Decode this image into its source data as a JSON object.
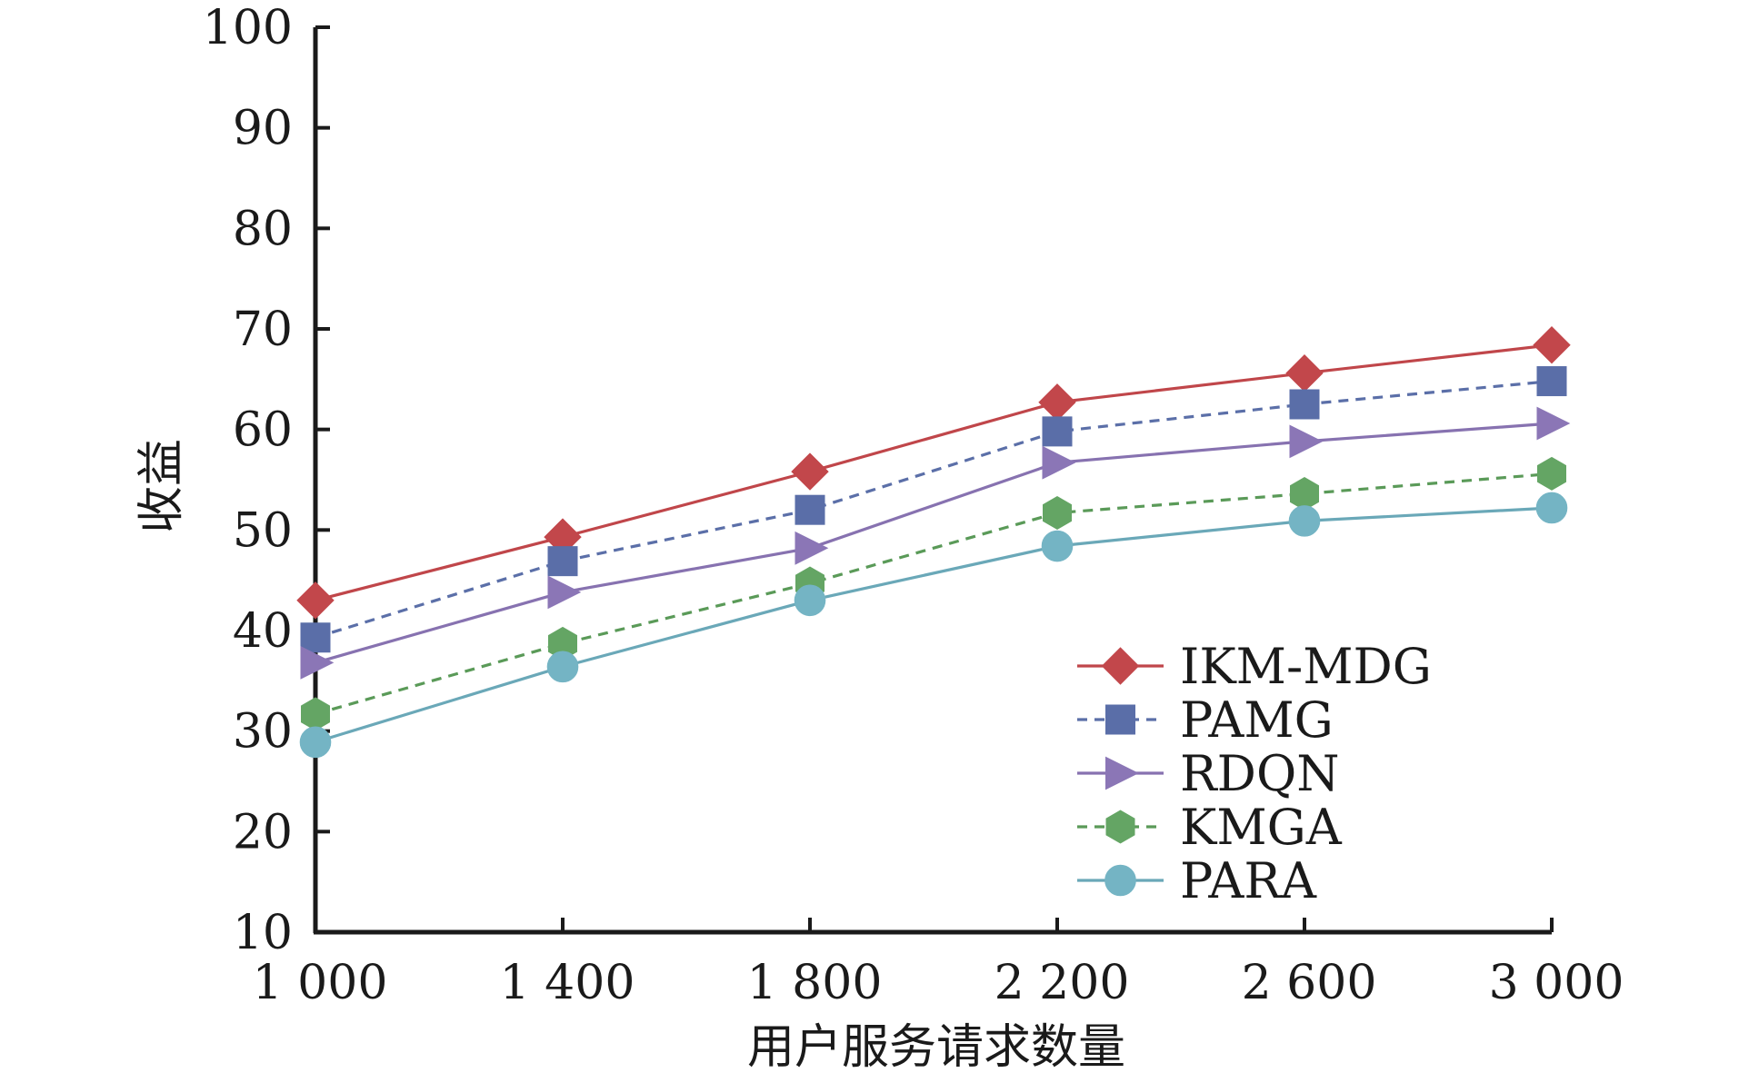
{
  "chart_data": {
    "type": "line",
    "xlabel": "用户服务请求数量",
    "ylabel": "收益",
    "x": [
      1000,
      1400,
      1800,
      2200,
      2600,
      3000
    ],
    "x_tick_labels": [
      "1 000",
      "1 400",
      "1 800",
      "2 200",
      "2 600",
      "3 000"
    ],
    "ylim": [
      10,
      100
    ],
    "y_ticks": [
      10,
      20,
      30,
      40,
      50,
      60,
      70,
      80,
      90,
      100
    ],
    "y_tick_labels": [
      "10",
      "20",
      "30",
      "40",
      "50",
      "60",
      "70",
      "80",
      "90",
      "100"
    ],
    "grid": false,
    "legend_position": "bottom-right",
    "series": [
      {
        "name": "IKM-MDG",
        "values": [
          43.0,
          49.3,
          55.8,
          62.7,
          65.6,
          68.4
        ],
        "color": "#c0464a",
        "dash": "solid",
        "marker": "diamond",
        "marker_color": "#c2474b"
      },
      {
        "name": "PAMG",
        "values": [
          39.3,
          46.9,
          52.0,
          59.8,
          62.5,
          64.8
        ],
        "color": "#5b6fa8",
        "dash": "dashed",
        "marker": "square",
        "marker_color": "#5a6ea8"
      },
      {
        "name": "RDQN",
        "values": [
          36.8,
          43.8,
          48.2,
          56.7,
          58.8,
          60.6
        ],
        "color": "#8772b0",
        "dash": "solid",
        "marker": "triangle-right",
        "marker_color": "#8b76b6"
      },
      {
        "name": "KMGA",
        "values": [
          31.7,
          38.7,
          44.7,
          51.7,
          53.6,
          55.6
        ],
        "color": "#5a9a58",
        "dash": "dashed",
        "marker": "hexagon",
        "marker_color": "#64a564"
      },
      {
        "name": "PARA",
        "values": [
          28.9,
          36.4,
          43.0,
          48.4,
          50.9,
          52.2
        ],
        "color": "#6aa8b8",
        "dash": "solid",
        "marker": "circle",
        "marker_color": "#74b4c4"
      }
    ]
  }
}
